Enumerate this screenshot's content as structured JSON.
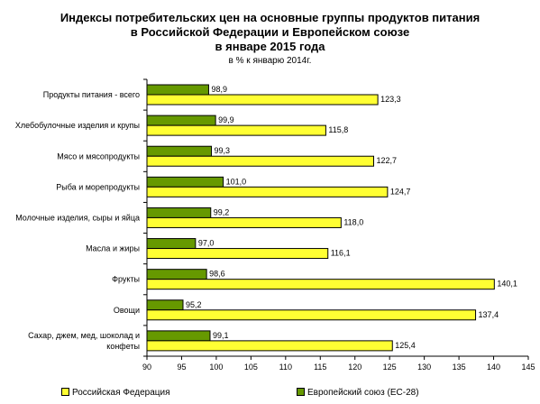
{
  "chart_data": {
    "type": "bar",
    "orientation": "horizontal",
    "title": [
      "Индексы потребительских цен на основные группы продуктов питания",
      "в Российской Федерации и Европейском союзе",
      "в январе 2015 года"
    ],
    "subtitle": "в % к январю 2014г.",
    "categories": [
      [
        "Продукты питания - всего"
      ],
      [
        "Хлебобулочные изделия и крупы"
      ],
      [
        "Мясо и мясопродукты"
      ],
      [
        "Рыба и морепродукты"
      ],
      [
        "Молочные изделия, сыры и яйца"
      ],
      [
        "Масла и жиры"
      ],
      [
        "Фрукты"
      ],
      [
        "Овощи"
      ],
      [
        "Сахар, джем, мед, шоколад и",
        "конфеты"
      ]
    ],
    "series": [
      {
        "name": "Европейский союз (ЕС-28)",
        "color": "#669900",
        "values": [
          98.9,
          99.9,
          99.3,
          101.0,
          99.2,
          97.0,
          98.6,
          95.2,
          99.1
        ],
        "labels": [
          "98,9",
          "99,9",
          "99,3",
          "101,0",
          "99,2",
          "97,0",
          "98,6",
          "95,2",
          "99,1"
        ]
      },
      {
        "name": "Российская Федерация",
        "color": "#ffff33",
        "values": [
          123.3,
          115.8,
          122.7,
          124.7,
          118.0,
          116.1,
          140.1,
          137.4,
          125.4
        ],
        "labels": [
          "123,3",
          "115,8",
          "122,7",
          "124,7",
          "118,0",
          "116,1",
          "140,1",
          "137,4",
          "125,4"
        ]
      }
    ],
    "xlim": [
      90,
      145
    ],
    "xticks": [
      90,
      95,
      100,
      105,
      110,
      115,
      120,
      125,
      130,
      135,
      140,
      145
    ],
    "grid": false,
    "legend_position": "bottom"
  }
}
